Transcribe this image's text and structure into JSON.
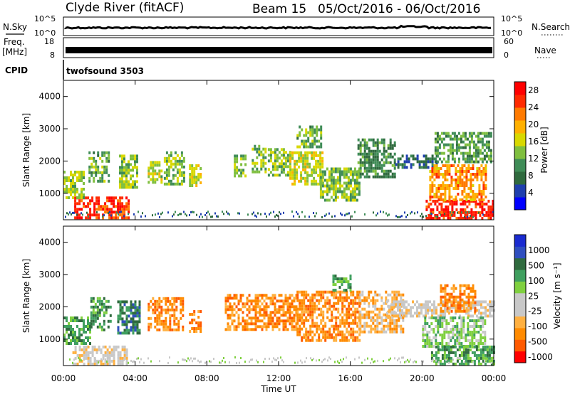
{
  "header": {
    "radar": "Clyde River (fitACF)",
    "beam": "Beam 15",
    "dates": "05/Oct/2016 - 06/Oct/2016"
  },
  "panels": {
    "nsky": {
      "label": "N.Sky",
      "right_label": "N.Search",
      "ticks_left": [
        "10^5",
        "10^0"
      ],
      "ticks_right": [
        "10^5",
        "10^0"
      ]
    },
    "freq": {
      "label_1": "Freq.",
      "label_2": "[MHz]",
      "right_label": "Nave",
      "ticks_left": [
        "18",
        "8"
      ],
      "ticks_right": [
        "60",
        "0"
      ]
    },
    "cpid": {
      "label": "CPID",
      "value": "twofsound 3503"
    }
  },
  "colors": {
    "power": [
      "#0000ff",
      "#1f3fae",
      "#2f6a3e",
      "#3f8c57",
      "#7fbf3f",
      "#d8d800",
      "#ffb000",
      "#ff7a00",
      "#ff2a00",
      "#ff0000"
    ],
    "velocity": [
      "#ff0000",
      "#ff5a00",
      "#ff8a00",
      "#ffb040",
      "#c8c8c8",
      "#c8c8c8",
      "#7fd03f",
      "#3f9f5f",
      "#2f6a3e",
      "#2f4fbf",
      "#1a2bd0"
    ]
  },
  "chart_data": [
    {
      "type": "heatmap",
      "title": "Power",
      "xlabel": "",
      "ylabel": "Slant Range [km]",
      "x_range": [
        "00:00",
        "00:00"
      ],
      "ylim": [
        180,
        4500
      ],
      "yticks": [
        "1000",
        "2000",
        "3000",
        "4000"
      ],
      "colorbar": {
        "label": "Power [dB]",
        "ticks": [
          "28",
          "24",
          "20",
          "16",
          "12",
          "8",
          "4"
        ],
        "range": [
          0,
          30
        ]
      },
      "regions": [
        {
          "t0": 0.6,
          "t1": 3.6,
          "r0": 200,
          "r1": 900,
          "v": 27
        },
        {
          "t0": 0.0,
          "t1": 1.1,
          "r0": 900,
          "r1": 1700,
          "v": 14
        },
        {
          "t0": 1.4,
          "t1": 2.5,
          "r0": 1400,
          "r1": 2300,
          "v": 12
        },
        {
          "t0": 3.1,
          "t1": 4.1,
          "r0": 1200,
          "r1": 2200,
          "v": 14
        },
        {
          "t0": 4.7,
          "t1": 5.5,
          "r0": 1300,
          "r1": 2000,
          "v": 15
        },
        {
          "t0": 5.6,
          "t1": 6.7,
          "r0": 1300,
          "r1": 2300,
          "v": 14
        },
        {
          "t0": 7.0,
          "t1": 7.6,
          "r0": 1200,
          "r1": 1900,
          "v": 16
        },
        {
          "t0": 9.5,
          "t1": 10.1,
          "r0": 1500,
          "r1": 2200,
          "v": 13
        },
        {
          "t0": 10.5,
          "t1": 11.3,
          "r0": 1700,
          "r1": 2500,
          "v": 13
        },
        {
          "t0": 11.4,
          "t1": 12.6,
          "r0": 1600,
          "r1": 2400,
          "v": 14
        },
        {
          "t0": 12.6,
          "t1": 14.5,
          "r0": 1300,
          "r1": 2300,
          "v": 16
        },
        {
          "t0": 13.0,
          "t1": 14.4,
          "r0": 2400,
          "r1": 3100,
          "v": 12
        },
        {
          "t0": 14.3,
          "t1": 16.5,
          "r0": 800,
          "r1": 1800,
          "v": 13
        },
        {
          "t0": 16.4,
          "t1": 18.5,
          "r0": 1500,
          "r1": 2700,
          "v": 9
        },
        {
          "t0": 18.5,
          "t1": 20.8,
          "r0": 1800,
          "r1": 2200,
          "v": 6
        },
        {
          "t0": 20.2,
          "t1": 24.0,
          "r0": 200,
          "r1": 800,
          "v": 28
        },
        {
          "t0": 20.4,
          "t1": 23.6,
          "r0": 800,
          "r1": 1900,
          "v": 22
        },
        {
          "t0": 20.7,
          "t1": 23.9,
          "r0": 2000,
          "r1": 2900,
          "v": 11
        }
      ]
    },
    {
      "type": "heatmap",
      "title": "Velocity",
      "xlabel": "Time UT",
      "ylabel": "Slant Range [km]",
      "xticks": [
        "00:00",
        "04:00",
        "08:00",
        "12:00",
        "16:00",
        "20:00",
        "00:00"
      ],
      "ylim": [
        180,
        4500
      ],
      "yticks": [
        "1000",
        "2000",
        "3000",
        "4000"
      ],
      "colorbar": {
        "label": "Velocity [m s⁻¹]",
        "ticks": [
          "1000",
          "500",
          "100",
          "25",
          "-25",
          "-100",
          "-500",
          "-1000"
        ]
      },
      "regions": [
        {
          "t0": 0.0,
          "t1": 1.5,
          "r0": 900,
          "r1": 1700,
          "v": 7
        },
        {
          "t0": 0.5,
          "t1": 3.5,
          "r0": 250,
          "r1": 800,
          "v": 4
        },
        {
          "t0": 1.5,
          "t1": 2.6,
          "r0": 1300,
          "r1": 2300,
          "v": 7
        },
        {
          "t0": 3.0,
          "t1": 4.2,
          "r0": 1200,
          "r1": 2200,
          "v": 8
        },
        {
          "t0": 4.7,
          "t1": 6.7,
          "r0": 1300,
          "r1": 2300,
          "v": 2
        },
        {
          "t0": 7.0,
          "t1": 7.6,
          "r0": 1200,
          "r1": 1900,
          "v": 2
        },
        {
          "t0": 9.0,
          "t1": 13.0,
          "r0": 1300,
          "r1": 2400,
          "v": 2
        },
        {
          "t0": 13.0,
          "t1": 16.5,
          "r0": 1000,
          "r1": 2500,
          "v": 2
        },
        {
          "t0": 15.0,
          "t1": 16.0,
          "r0": 2500,
          "r1": 3000,
          "v": 7
        },
        {
          "t0": 16.5,
          "t1": 19.0,
          "r0": 1200,
          "r1": 2500,
          "v": 3
        },
        {
          "t0": 18.0,
          "t1": 24.0,
          "r0": 1700,
          "r1": 2200,
          "v": 4
        },
        {
          "t0": 20.0,
          "t1": 23.5,
          "r0": 800,
          "r1": 1700,
          "v": 6
        },
        {
          "t0": 21.0,
          "t1": 23.0,
          "r0": 1900,
          "r1": 2700,
          "v": 2
        },
        {
          "t0": 20.5,
          "t1": 24.0,
          "r0": 250,
          "r1": 800,
          "v": 7
        }
      ]
    }
  ]
}
